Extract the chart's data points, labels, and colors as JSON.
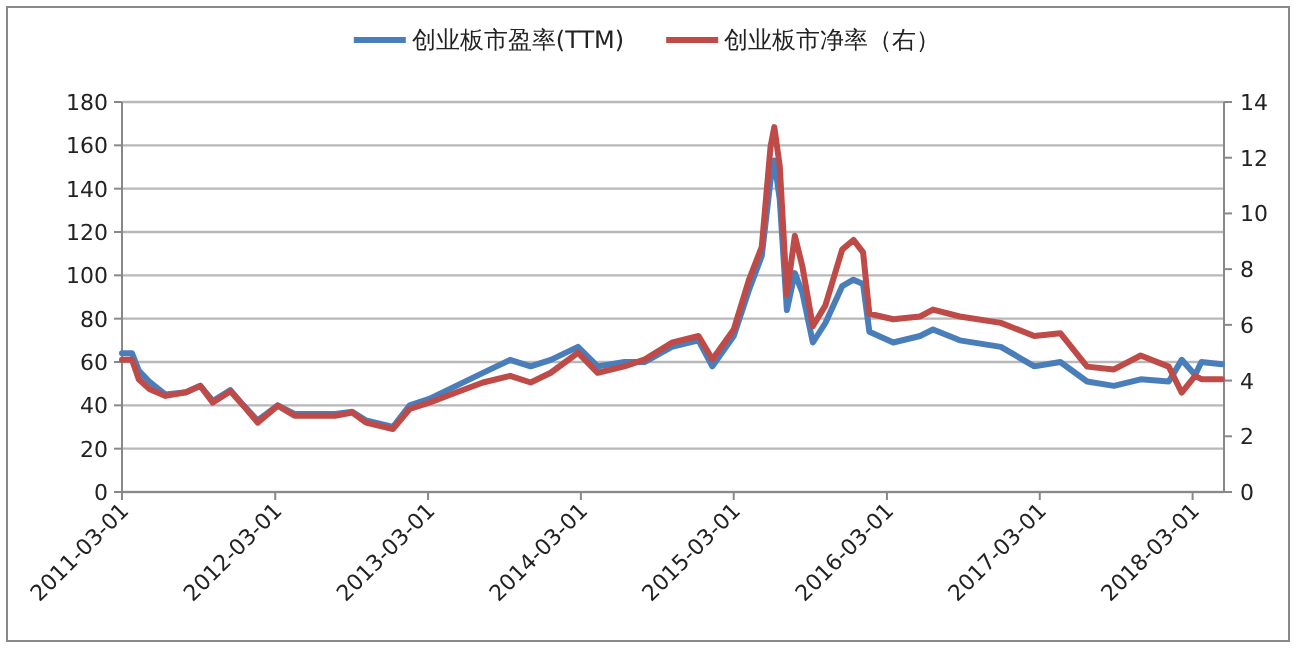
{
  "chart_data": {
    "type": "line",
    "legend": "top",
    "grid": "y",
    "x": [
      "2011-03-01",
      "2011-03-25",
      "2011-04-10",
      "2011-05-05",
      "2011-06-13",
      "2011-08-01",
      "2011-09-04",
      "2011-10-04",
      "2011-11-15",
      "2011-12-16",
      "2012-01-19",
      "2012-03-07",
      "2012-04-16",
      "2012-06-04",
      "2012-07-22",
      "2012-09-01",
      "2012-10-04",
      "2012-12-07",
      "2013-01-16",
      "2013-03-04",
      "2013-05-07",
      "2013-07-10",
      "2013-09-13",
      "2013-11-01",
      "2013-12-19",
      "2014-02-22",
      "2014-04-10",
      "2014-06-13",
      "2014-08-01",
      "2014-10-04",
      "2014-12-07",
      "2015-01-09",
      "2015-03-01",
      "2015-04-06",
      "2015-05-07",
      "2015-05-28",
      "2015-06-06",
      "2015-06-19",
      "2015-07-06",
      "2015-07-25",
      "2015-08-12",
      "2015-09-06",
      "2015-10-06",
      "2015-11-15",
      "2015-12-12",
      "2016-01-04",
      "2016-01-19",
      "2016-03-16",
      "2016-05-19",
      "2016-06-19",
      "2016-08-22",
      "2016-11-28",
      "2017-02-16",
      "2017-04-19",
      "2017-06-22",
      "2017-08-25",
      "2017-10-28",
      "2018-01-03",
      "2018-02-03",
      "2018-03-07",
      "2018-03-22",
      "2018-05-10"
    ],
    "series": [
      {
        "name": "创业板市盈率(TTM)",
        "color": "#4a7ebb",
        "values": [
          64,
          64,
          56,
          51,
          45,
          46,
          49,
          42,
          47,
          40,
          33,
          40,
          36,
          36,
          36,
          37,
          33,
          30,
          40,
          43,
          49,
          55,
          61,
          58,
          61,
          67,
          58,
          60,
          60,
          67,
          70,
          58,
          72,
          93,
          109,
          144,
          153,
          135,
          84,
          101,
          92,
          69,
          78,
          95,
          98,
          96,
          74,
          69,
          72,
          75,
          70,
          67,
          58,
          60,
          51,
          49,
          52,
          51,
          61,
          54,
          60,
          59
        ]
      },
      {
        "name": "创业板市净率（右）",
        "color": "#be4b48",
        "axis": "y2",
        "values": [
          4.75,
          4.75,
          4.05,
          3.7,
          3.45,
          3.58,
          3.81,
          3.21,
          3.62,
          3.1,
          2.49,
          3.1,
          2.74,
          2.74,
          2.74,
          2.85,
          2.49,
          2.26,
          2.98,
          3.21,
          3.57,
          3.93,
          4.17,
          3.93,
          4.28,
          5.0,
          4.28,
          4.51,
          4.76,
          5.36,
          5.6,
          4.76,
          5.83,
          7.6,
          8.8,
          12.4,
          13.1,
          11.7,
          7.1,
          9.2,
          8.1,
          5.95,
          6.7,
          8.7,
          9.05,
          8.6,
          6.4,
          6.2,
          6.3,
          6.55,
          6.3,
          6.07,
          5.6,
          5.7,
          4.5,
          4.4,
          4.9,
          4.5,
          3.57,
          4.17,
          4.05,
          4.05
        ]
      }
    ],
    "xlim": [
      "2011-03-01",
      "2018-05-15"
    ],
    "xticks": [
      "2011-03-01",
      "2012-03-01",
      "2013-03-01",
      "2014-03-01",
      "2015-03-01",
      "2016-03-01",
      "2017-03-01",
      "2018-03-01"
    ],
    "ylim": [
      0,
      180
    ],
    "yticks": [
      0,
      20,
      40,
      60,
      80,
      100,
      120,
      140,
      160,
      180
    ],
    "y2lim": [
      0,
      14
    ],
    "y2ticks": [
      0,
      2,
      4,
      6,
      8,
      10,
      12,
      14
    ]
  }
}
